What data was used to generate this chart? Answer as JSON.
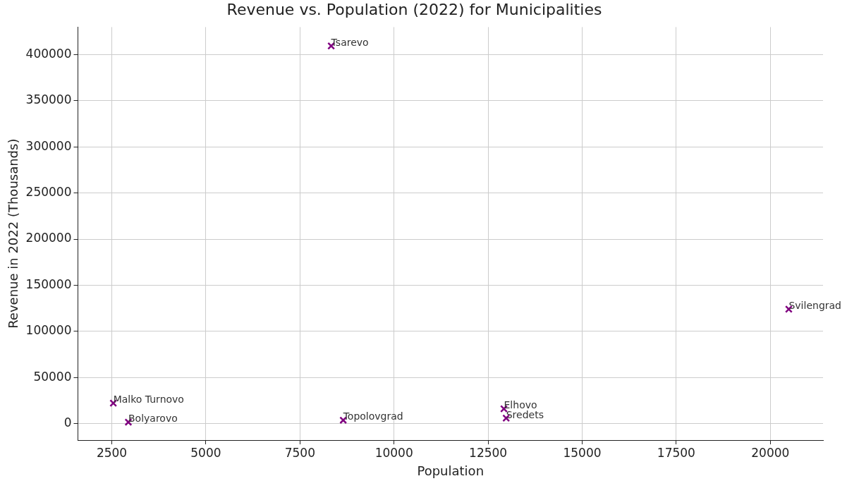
{
  "chart_data": {
    "type": "scatter",
    "title": "Revenue vs. Population (2022) for Municipalities",
    "xlabel": "Population",
    "ylabel": "Revenue in 2022 (Thousands)",
    "x": [
      8330,
      20490,
      2540,
      2940,
      8650,
      12920,
      12980
    ],
    "values": [
      409500,
      124000,
      22000,
      1500,
      3600,
      16000,
      5800
    ],
    "color": "#800080",
    "marker": "cross",
    "grid": true,
    "legend": false,
    "xlim": [
      1600,
      21400
    ],
    "xticks": [
      2500,
      5000,
      7500,
      10000,
      12500,
      15000,
      17500,
      20000
    ],
    "ylim": [
      -18000,
      430000
    ],
    "yticks": [
      0,
      50000,
      100000,
      150000,
      200000,
      250000,
      300000,
      350000,
      400000
    ],
    "annotations": [
      {
        "text": "Tsarevo",
        "x": 8330,
        "y": 409500
      },
      {
        "text": "Svilengrad",
        "x": 20490,
        "y": 124000
      },
      {
        "text": "Malko Turnovo",
        "x": 2540,
        "y": 22000
      },
      {
        "text": "Bolyarovo",
        "x": 2940,
        "y": 1500
      },
      {
        "text": "Topolovgrad",
        "x": 8650,
        "y": 3600
      },
      {
        "text": "Elhovo",
        "x": 12920,
        "y": 16000
      },
      {
        "text": "Sredets",
        "x": 12980,
        "y": 5800
      }
    ]
  }
}
